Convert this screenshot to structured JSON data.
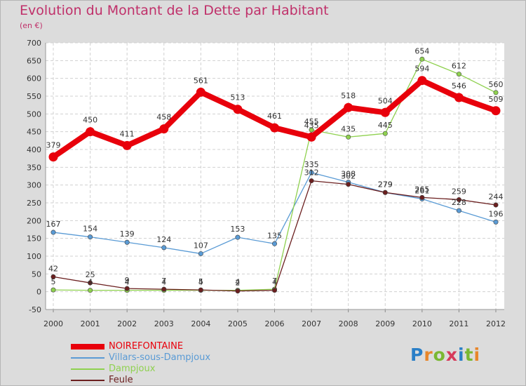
{
  "header": {
    "title": "Evolution du Montant de la Dette par Habitant",
    "unit": "(en €)"
  },
  "chart_data": {
    "type": "line",
    "title": "Evolution du Montant de la Dette par Habitant",
    "ylabel": "(en €)",
    "xlabel": "",
    "x": [
      "2000",
      "2001",
      "2002",
      "2003",
      "2004",
      "2005",
      "2006",
      "2007",
      "2008",
      "2009",
      "2010",
      "2011",
      "2012"
    ],
    "ylim": [
      -50,
      700
    ],
    "yticks": [
      -50,
      0,
      50,
      100,
      150,
      200,
      250,
      300,
      350,
      400,
      450,
      500,
      550,
      600,
      650,
      700
    ],
    "grid": true,
    "legend": "bottom-left",
    "series": [
      {
        "name": "NOIREFONTAINE",
        "color": "#e8000b",
        "values": [
          379,
          450,
          411,
          458,
          561,
          513,
          461,
          435,
          518,
          504,
          594,
          546,
          509
        ]
      },
      {
        "name": "Villars-sous-Dampjoux",
        "color": "#5a9bd5",
        "values": [
          167,
          154,
          139,
          124,
          107,
          153,
          135,
          335,
          308,
          279,
          261,
          228,
          196
        ]
      },
      {
        "name": "Dampjoux",
        "color": "#8fd14f",
        "values": [
          5,
          4,
          4,
          4,
          4,
          4,
          7,
          455,
          435,
          445,
          654,
          612,
          560
        ]
      },
      {
        "name": "Feule",
        "color": "#6b1f1f",
        "values": [
          42,
          25,
          9,
          7,
          5,
          2,
          4,
          312,
          302,
          279,
          265,
          259,
          244
        ]
      }
    ]
  },
  "logo": {
    "text": "Proxiti"
  }
}
